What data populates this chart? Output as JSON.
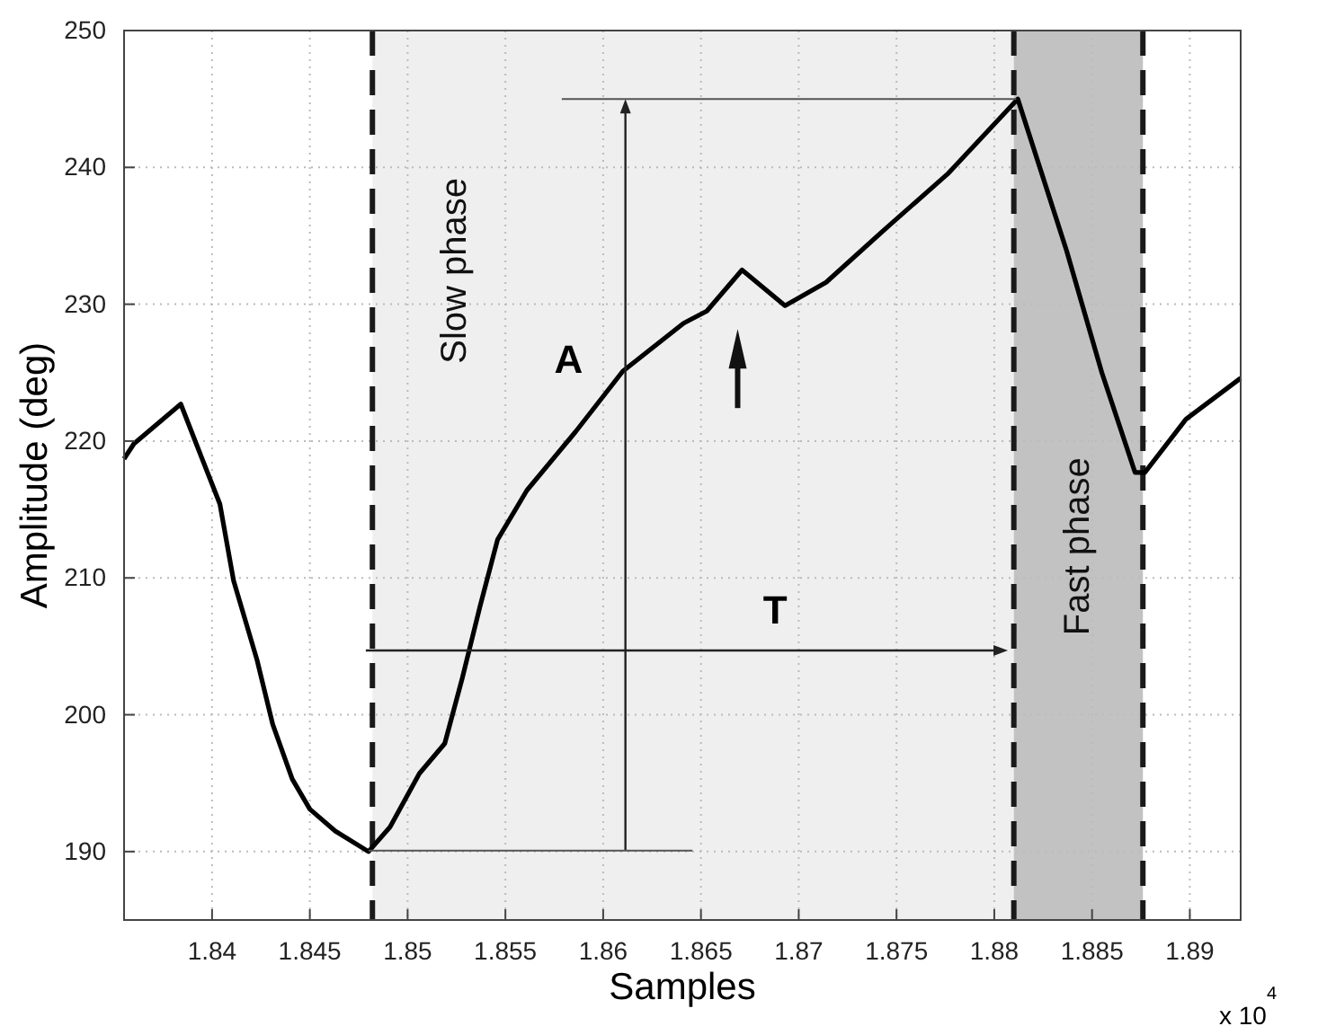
{
  "chart_data": {
    "type": "line",
    "xlabel": "Samples",
    "ylabel": "Amplitude (deg)",
    "xlim": [
      1.8355,
      1.8926
    ],
    "xticks": [
      1.84,
      1.845,
      1.85,
      1.855,
      1.86,
      1.865,
      1.87,
      1.875,
      1.88,
      1.885,
      1.89
    ],
    "ylim": [
      185,
      250
    ],
    "yticks": [
      190,
      200,
      210,
      220,
      230,
      240,
      250
    ],
    "grid": true,
    "line_style": "solid",
    "x": [
      1.8355,
      1.836,
      1.8384,
      1.8393,
      1.8404,
      1.8411,
      1.8423,
      1.8431,
      1.8441,
      1.845,
      1.8463,
      1.848,
      1.8491,
      1.8506,
      1.8519,
      1.8528,
      1.8537,
      1.8546,
      1.8561,
      1.8586,
      1.861,
      1.8641,
      1.8653,
      1.8671,
      1.8693,
      1.8714,
      1.8745,
      1.8776,
      1.8812,
      1.8837,
      1.8855,
      1.8872,
      1.8877,
      1.8898,
      1.8926
    ],
    "series": [
      {
        "color": "#000000",
        "values": [
          218.7,
          219.8,
          222.7,
          219.4,
          215.4,
          209.8,
          204.0,
          199.3,
          195.3,
          193.1,
          191.5,
          190.0,
          191.8,
          195.7,
          197.9,
          202.7,
          207.9,
          212.8,
          216.4,
          220.7,
          225.1,
          228.6,
          229.5,
          232.5,
          229.9,
          231.6,
          235.6,
          239.5,
          245.0,
          233.9,
          225.0,
          217.7,
          217.7,
          221.6,
          224.6
        ]
      }
    ],
    "bands": [
      {
        "axis": "x",
        "from": 1.8482,
        "to": 1.881,
        "label": "Slow phase",
        "color": "#efefef"
      },
      {
        "axis": "x",
        "from": 1.881,
        "to": 1.8876,
        "label": "Fast phase",
        "color": "#c2c2c2"
      }
    ],
    "ref_lines": [
      {
        "axis": "x",
        "value": 1.8482,
        "line_style": "dashed",
        "color": "#1a1a1a"
      },
      {
        "axis": "x",
        "value": 1.881,
        "line_style": "dashed",
        "color": "#1a1a1a"
      },
      {
        "axis": "x",
        "value": 1.8876,
        "line_style": "dashed",
        "color": "#1a1a1a"
      }
    ],
    "annotations": [
      "A",
      "T",
      "x 10$^{4}$"
    ]
  }
}
